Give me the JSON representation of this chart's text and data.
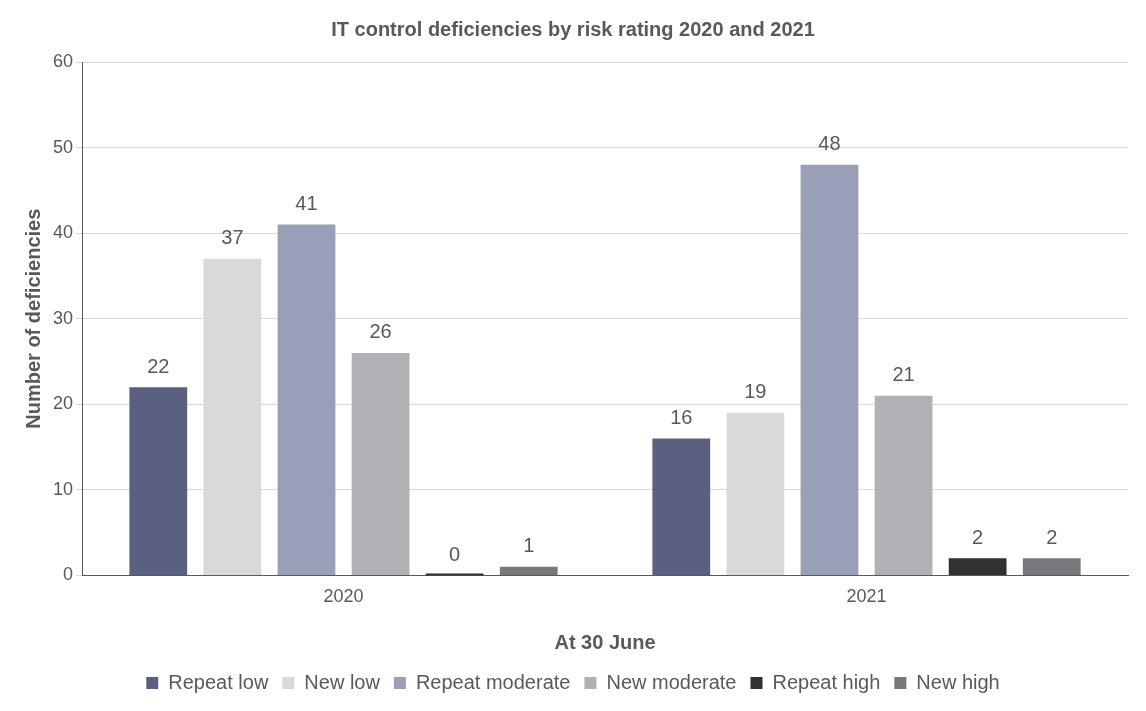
{
  "chart_data": {
    "type": "bar",
    "title": "IT control deficiencies by risk rating 2020 and 2021",
    "xlabel": "At 30 June",
    "ylabel": "Number of deficiencies",
    "categories": [
      "2020",
      "2021"
    ],
    "series": [
      {
        "name": "Repeat low",
        "color": "#5a6180",
        "values": [
          22,
          16
        ]
      },
      {
        "name": "New low",
        "color": "#d9d9db",
        "values": [
          37,
          19
        ]
      },
      {
        "name": "Repeat moderate",
        "color": "#9a9fb8",
        "values": [
          41,
          48
        ]
      },
      {
        "name": "New moderate",
        "color": "#b1b1b5",
        "values": [
          26,
          21
        ]
      },
      {
        "name": "Repeat high",
        "color": "#333033",
        "values": [
          0,
          2
        ]
      },
      {
        "name": "New high",
        "color": "#78777c",
        "values": [
          1,
          2
        ]
      }
    ],
    "ylim": [
      0,
      60
    ],
    "yticks": [
      0,
      10,
      20,
      30,
      40,
      50,
      60
    ],
    "grid": "y",
    "legend": "bottom",
    "data_labels": true
  }
}
